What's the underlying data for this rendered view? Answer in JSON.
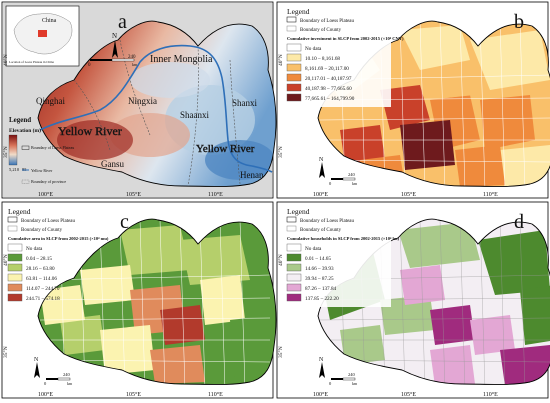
{
  "panels": {
    "a": {
      "letter": "a",
      "inset": {
        "label": "China",
        "caption": "Location of Loess Plateau in China"
      },
      "places": [
        "Inner Mongolia",
        "Ningxia",
        "Shaanxi",
        "Shanxi",
        "Qinghai",
        "Gansu",
        "Henan"
      ],
      "rivers": [
        "Yellow River",
        "Yellow River"
      ],
      "legend": {
        "title": "Legend",
        "elevation_label": "Elevation (m)",
        "elevation_high": "5,210",
        "elevation_low": "85",
        "items": [
          "Boundary of Loess Plateau",
          "Yellow River",
          "Boundary of province"
        ]
      },
      "north": "N",
      "scalebar": {
        "start": "0",
        "end": "240",
        "unit": "km"
      },
      "lat_labels": [
        "40°N",
        "35°N"
      ],
      "lon_labels": [
        "100°E",
        "105°E",
        "110°E"
      ]
    },
    "b": {
      "letter": "b",
      "legend": {
        "title": "Legend",
        "boundaries": [
          "Boundary of Loess Plateau",
          "Boundary of County"
        ],
        "subtitle": "Cumulative investment in SLCP from 2002-2015 (×10⁴ CNY)",
        "classes": [
          {
            "label": "No data",
            "color": "#ffffff"
          },
          {
            "label": "10.10 – 8,161.68",
            "color": "#fde9a8"
          },
          {
            "label": "8,161.69 – 20,117.00",
            "color": "#f9c06a"
          },
          {
            "label": "20,117.01 – 40,187.97",
            "color": "#ef8a3c"
          },
          {
            "label": "40,187.98 – 77,665.60",
            "color": "#c9412a"
          },
          {
            "label": "77,665.61 – 164,799.90",
            "color": "#6e1a1d"
          }
        ]
      },
      "north": "N",
      "scalebar": {
        "start": "0",
        "end": "240",
        "unit": "km"
      },
      "lat_labels": [
        "40°N",
        "35°N"
      ],
      "lon_labels": [
        "100°E",
        "105°E",
        "110°E"
      ]
    },
    "c": {
      "letter": "c",
      "legend": {
        "title": "Legend",
        "boundaries": [
          "Boundary of Loess Plateau",
          "Boundary of County"
        ],
        "subtitle": "Cumulative area in SLCP from 2002-2015 (×10⁴ mu)",
        "classes": [
          {
            "label": "No data",
            "color": "#ffffff"
          },
          {
            "label": "0.04 – 28.15",
            "color": "#5a9a3a"
          },
          {
            "label": "28.16 – 63.80",
            "color": "#b5cf6b"
          },
          {
            "label": "63.81 – 114.06",
            "color": "#fbf3b0"
          },
          {
            "label": "114.07 – 244.70",
            "color": "#e08b5c"
          },
          {
            "label": "244.71 – 574.18",
            "color": "#b23a2c"
          }
        ]
      },
      "north": "N",
      "scalebar": {
        "start": "0",
        "end": "240",
        "unit": "km"
      },
      "lat_labels": [
        "40°N",
        "35°N"
      ],
      "lon_labels": [
        "100°E",
        "105°E",
        "110°E"
      ]
    },
    "d": {
      "letter": "d",
      "legend": {
        "title": "Legend",
        "boundaries": [
          "Boundary of Loess Plateau",
          "Boundary of County"
        ],
        "subtitle": "Cumulative households in SLCP from 2002-2015 (×10⁴ hu)",
        "classes": [
          {
            "label": "No data",
            "color": "#ffffff"
          },
          {
            "label": "0.01 – 14.65",
            "color": "#4d8a2e"
          },
          {
            "label": "14.66 – 39.93",
            "color": "#a9c98a"
          },
          {
            "label": "39.94 – 87.25",
            "color": "#f3eef3"
          },
          {
            "label": "87.26 – 137.84",
            "color": "#e3a7d4"
          },
          {
            "label": "137.85 – 222.20",
            "color": "#a02b7e"
          }
        ]
      },
      "north": "N",
      "scalebar": {
        "start": "0",
        "end": "240",
        "unit": "km"
      },
      "lat_labels": [
        "40°N",
        "35°N"
      ],
      "lon_labels": [
        "100°E",
        "105°E",
        "110°E"
      ]
    }
  }
}
